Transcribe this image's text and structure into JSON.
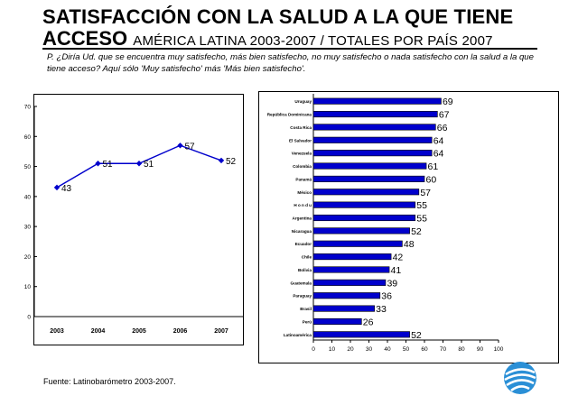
{
  "header": {
    "title_line1": "SATISFACCIÓN CON LA SALUD A LA QUE TIENE",
    "title_line2": "ACCESO",
    "subtitle": "AMÉRICA LATINA 2003-2007 / TOTALES POR PAÍS 2007",
    "question": "P. ¿Diría Ud. que se encuentra muy satisfecho, más bien satisfecho, no muy satisfecho o nada satisfecho con la salud a la que tiene acceso? Aquí sólo 'Muy satisfecho' más 'Más bien satisfecho'."
  },
  "footer": {
    "source": "Fuente: Latinobarómetro 2003-2007."
  },
  "colors": {
    "line": "#0000cc",
    "marker": "#0000cc",
    "bar": "#0000cc",
    "bar_border": "#000000"
  },
  "chart_data": [
    {
      "type": "line",
      "categories": [
        "2003",
        "2004",
        "2005",
        "2006",
        "2007"
      ],
      "series": [
        {
          "values": [
            43,
            51,
            51,
            57,
            52
          ]
        }
      ],
      "data_labels": [
        "43",
        "51",
        "51",
        "57",
        "52"
      ],
      "ylim": [
        0,
        70
      ],
      "yticks": [
        "0",
        "10",
        "20",
        "30",
        "40",
        "50",
        "60",
        "70"
      ],
      "grid": false
    },
    {
      "type": "bar",
      "orientation": "horizontal",
      "categories": [
        "Uruguay",
        "República Dominicana",
        "Costa Rica",
        "El Salvador",
        "Venezuela",
        "Colombia",
        "Panamá",
        "México",
        "Honduras",
        "Argentina",
        "Nicaragua",
        "Ecuador",
        "Chile",
        "Bolivia",
        "Guatemala",
        "Paraguay",
        "Brasil",
        "Perú",
        "Latinoamérica"
      ],
      "category_labels": [
        "Uruguay",
        "República Dominicana",
        "Costa Rica",
        "El Salvador",
        "Venezuela",
        "Colombia",
        "Panamá",
        "México",
        "H o n d u",
        "Argentina",
        "Nicaragua",
        "Ecuador",
        "Chile",
        "Bolivia",
        "Guatemala",
        "Paraguay",
        "Brasil",
        "Perú",
        "Latinoamérica"
      ],
      "values": [
        69,
        67,
        66,
        64,
        64,
        61,
        60,
        57,
        55,
        55,
        52,
        48,
        42,
        41,
        39,
        36,
        33,
        26,
        52
      ],
      "data_labels": [
        "69",
        "67",
        "66",
        "64",
        "64",
        "61",
        "60",
        "57",
        "55",
        "55",
        "52",
        "48",
        "42",
        "41",
        "39",
        "36",
        "33",
        "26",
        "52"
      ],
      "xlim": [
        0,
        100
      ],
      "xticks": [
        "0",
        "10",
        "20",
        "30",
        "40",
        "50",
        "60",
        "70",
        "80",
        "90",
        "100"
      ],
      "grid": false
    }
  ]
}
